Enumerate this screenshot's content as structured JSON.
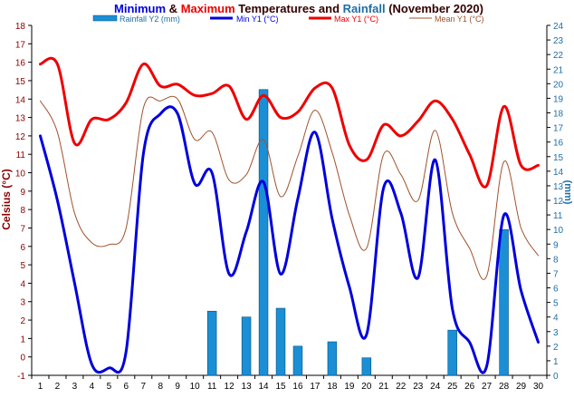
{
  "title": {
    "part1": "Minimum",
    "part2": " & ",
    "part3": "Maximum",
    "part4": " Temperatures and ",
    "part5": "Rainfall",
    "part6": " (November 2020)"
  },
  "colors": {
    "min": "#0000dd",
    "max": "#ee0000",
    "mean": "#a0522d",
    "rain_fill": "#1a8fd6",
    "rain_stroke": "#0a4f7a",
    "left_axis": "#8b0000",
    "right_axis": "#1e6ea8",
    "title_dark": "#330000",
    "grid": "#000000"
  },
  "chart_data": {
    "type": "line",
    "title": "Minimum & Maximum Temperatures and Rainfall (November 2020)",
    "x": [
      1,
      2,
      3,
      4,
      5,
      6,
      7,
      8,
      9,
      10,
      11,
      12,
      13,
      14,
      15,
      16,
      17,
      18,
      19,
      20,
      21,
      22,
      23,
      24,
      25,
      26,
      27,
      28,
      29,
      30
    ],
    "xlabel": "",
    "ylabel_left": "Celsius (°C)",
    "ylabel_right": "(mm)",
    "ylim_left": [
      -1,
      18
    ],
    "ylim_right": [
      0,
      24
    ],
    "legend_position": "top",
    "series": [
      {
        "name": "Rainfall Y2 (mm)",
        "kind": "bar",
        "axis": "right",
        "values": [
          0,
          0,
          0,
          0,
          0,
          0,
          0,
          0,
          0,
          0,
          4.4,
          0,
          4.0,
          19.6,
          4.6,
          2.0,
          0,
          2.3,
          0,
          1.2,
          0,
          0,
          0,
          0,
          3.1,
          0,
          0,
          10.0,
          0,
          0
        ]
      },
      {
        "name": "Min Y1 (°C)",
        "kind": "line",
        "axis": "left",
        "values": [
          12.0,
          8.5,
          4.0,
          -0.4,
          -0.6,
          0.3,
          11.0,
          13.2,
          13.2,
          9.4,
          10.0,
          4.5,
          6.8,
          9.5,
          4.5,
          8.6,
          12.2,
          7.5,
          3.8,
          1.2,
          9.2,
          7.8,
          4.3,
          10.7,
          2.6,
          0.8,
          -0.5,
          7.7,
          3.6,
          0.8
        ]
      },
      {
        "name": "Max Y1 (°C)",
        "kind": "line",
        "axis": "left",
        "values": [
          15.9,
          15.9,
          11.6,
          12.9,
          12.9,
          13.8,
          15.9,
          14.7,
          14.8,
          14.2,
          14.3,
          14.7,
          12.9,
          14.2,
          13.0,
          13.3,
          14.6,
          14.6,
          11.5,
          10.7,
          12.6,
          12.0,
          12.8,
          13.9,
          12.9,
          11.0,
          9.3,
          13.6,
          10.4,
          10.4
        ]
      },
      {
        "name": "Mean Y1 (°C)",
        "kind": "line",
        "axis": "left",
        "values": [
          13.9,
          12.2,
          7.8,
          6.2,
          6.1,
          7.0,
          13.5,
          13.9,
          14.0,
          11.8,
          12.2,
          9.6,
          9.9,
          11.8,
          8.7,
          10.9,
          13.4,
          11.1,
          7.7,
          5.9,
          11.0,
          9.9,
          8.5,
          12.3,
          7.8,
          5.9,
          4.4,
          10.6,
          7.0,
          5.5
        ]
      }
    ],
    "y_ticks_left": [
      "-1",
      "0",
      "1",
      "2",
      "3",
      "4",
      "5",
      "6",
      "7",
      "8",
      "9",
      "10",
      "11",
      "12",
      "13",
      "14",
      "15",
      "16",
      "17",
      "18"
    ],
    "y_ticks_right": [
      "0",
      "1",
      "2",
      "3",
      "4",
      "5",
      "6",
      "7",
      "8",
      "9",
      "10",
      "11",
      "12",
      "13",
      "14",
      "15",
      "16",
      "17",
      "18",
      "19",
      "20",
      "21",
      "22",
      "23",
      "24"
    ],
    "x_ticks": [
      "1",
      "2",
      "3",
      "4",
      "5",
      "6",
      "7",
      "8",
      "9",
      "10",
      "11",
      "12",
      "13",
      "14",
      "15",
      "16",
      "17",
      "18",
      "19",
      "20",
      "21",
      "22",
      "23",
      "24",
      "25",
      "26",
      "27",
      "28",
      "29",
      "30"
    ]
  }
}
